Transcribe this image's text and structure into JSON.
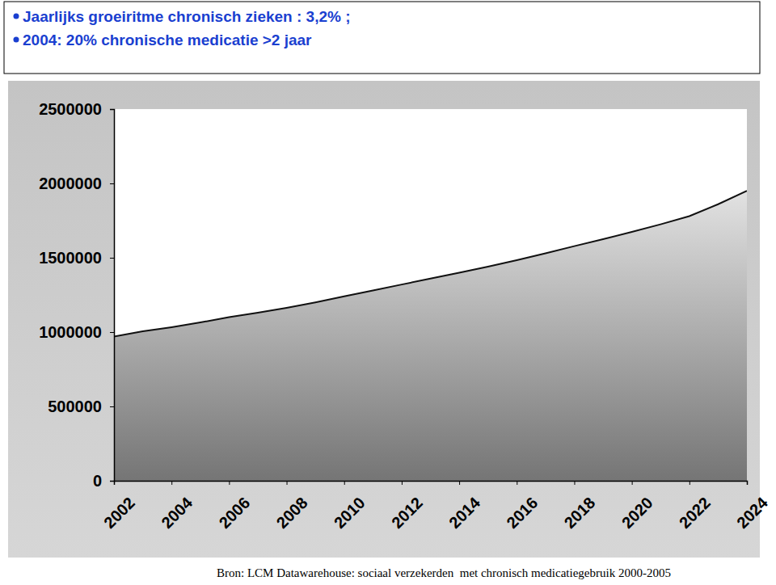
{
  "chart_data": {
    "type": "area",
    "annotations": [
      "Jaarlijks groeiritme  chronisch zieken : 3,2% ;",
      "2004: 20% chronische medicatie >2 jaar"
    ],
    "source": "Bron: LCM Datawarehouse: sociaal verzekerden  met chronisch medicatiegebruik 2000-2005",
    "x": [
      2002,
      2003,
      2004,
      2005,
      2006,
      2007,
      2008,
      2009,
      2010,
      2011,
      2012,
      2013,
      2014,
      2015,
      2016,
      2017,
      2018,
      2019,
      2020,
      2021,
      2022,
      2023,
      2024
    ],
    "values": [
      970000,
      1005000,
      1033000,
      1065000,
      1100000,
      1130000,
      1163000,
      1200000,
      1240000,
      1280000,
      1320000,
      1360000,
      1400000,
      1440000,
      1484000,
      1530000,
      1578000,
      1625000,
      1674000,
      1725000,
      1780000,
      1860000,
      1950000
    ],
    "color": "#808080",
    "xlim": [
      2002,
      2024
    ],
    "xticks": [
      2002,
      2004,
      2006,
      2008,
      2010,
      2012,
      2014,
      2016,
      2018,
      2020,
      2022,
      2024
    ],
    "ylim": [
      0,
      2500000
    ],
    "yticks": [
      0,
      500000,
      1000000,
      1500000,
      2000000,
      2500000
    ],
    "grid": false
  }
}
